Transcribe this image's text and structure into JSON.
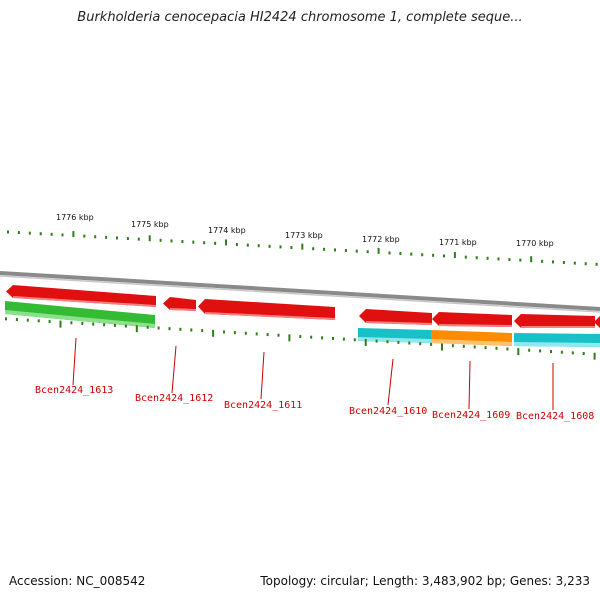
{
  "title": "Burkholderia cenocepacia HI2424 chromosome 1, complete seque...",
  "footer": {
    "accession": "Accession: NC_008542",
    "topology": "Topology: circular; Length: 3,483,902 bp; Genes: 3,233"
  },
  "kbp_labels": [
    {
      "text": "1776 kbp",
      "kbp": 1776
    },
    {
      "text": "1775 kbp",
      "kbp": 1775
    },
    {
      "text": "1774 kbp",
      "kbp": 1774
    },
    {
      "text": "1773 kbp",
      "kbp": 1773
    },
    {
      "text": "1772 kbp",
      "kbp": 1772
    },
    {
      "text": "1771 kbp",
      "kbp": 1771
    },
    {
      "text": "1770 kbp",
      "kbp": 1770
    }
  ],
  "genes": [
    {
      "id": "Bcen2424_1613"
    },
    {
      "id": "Bcen2424_1612"
    },
    {
      "id": "Bcen2424_1611"
    },
    {
      "id": "Bcen2424_1610"
    },
    {
      "id": "Bcen2424_1609"
    },
    {
      "id": "Bcen2424_1608"
    }
  ],
  "colors": {
    "backbone": "#8a8a8a",
    "cds": "#e01010",
    "green_feature": "#33bb33",
    "cyan_feature": "#18c0c8",
    "orange_feature": "#ff8c00",
    "ticks": "#2e7d1a",
    "label": "#d00000"
  }
}
